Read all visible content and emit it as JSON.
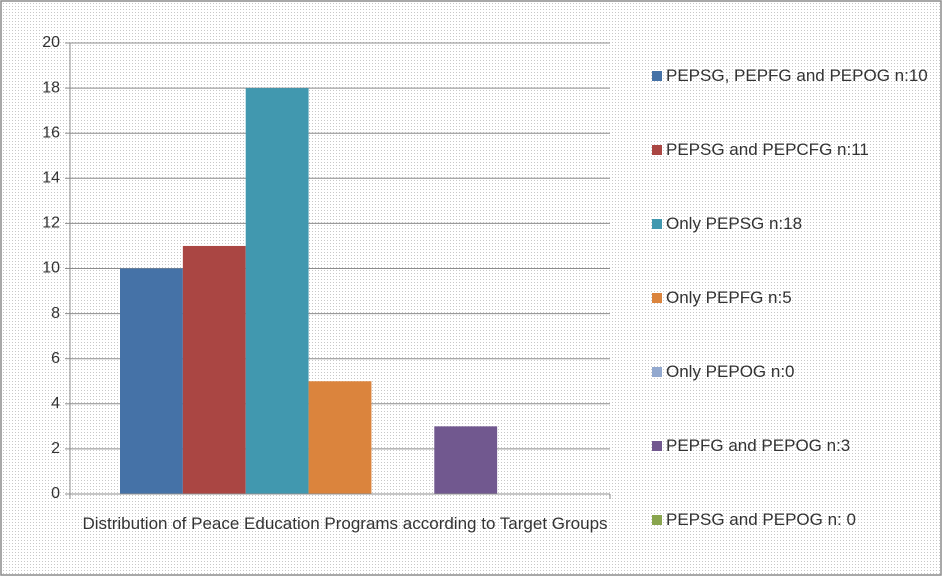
{
  "chart_data": {
    "type": "bar",
    "categories": [
      "Distribution of Peace Education Programs according to Target Groups"
    ],
    "series": [
      {
        "name": "PEPSG, PEPFG and PEPOG n:10",
        "color": "#4572a7",
        "values": [
          10
        ]
      },
      {
        "name": "PEPSG and PEPCFG n:11",
        "color": "#aa4643",
        "values": [
          11
        ]
      },
      {
        "name": "Only PEPSG n:18",
        "color": "#4198af",
        "values": [
          18
        ]
      },
      {
        "name": "Only PEPFG n:5",
        "color": "#db843d",
        "values": [
          5
        ]
      },
      {
        "name": "Only PEPOG n:0",
        "color": "#93a9cf",
        "values": [
          0
        ]
      },
      {
        "name": "PEPFG and PEPOG n:3",
        "color": "#71588f",
        "values": [
          3
        ]
      },
      {
        "name": "PEPSG and PEPOG n: 0",
        "color": "#89a54e",
        "values": [
          0
        ]
      }
    ],
    "ylim": [
      0,
      20
    ],
    "yticks": [
      0,
      2,
      4,
      6,
      8,
      10,
      12,
      14,
      16,
      18,
      20
    ],
    "grid": true,
    "legend": "right"
  }
}
